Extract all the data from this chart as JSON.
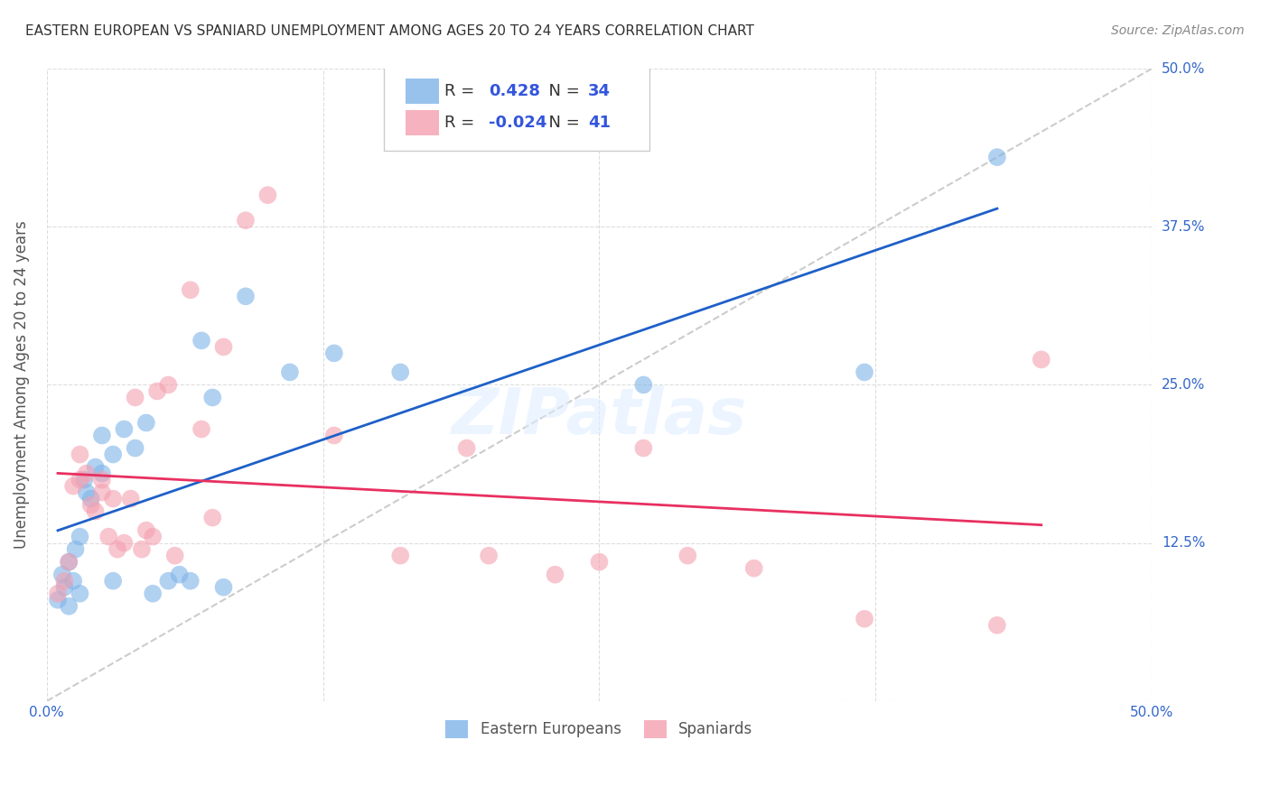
{
  "title": "EASTERN EUROPEAN VS SPANIARD UNEMPLOYMENT AMONG AGES 20 TO 24 YEARS CORRELATION CHART",
  "source": "Source: ZipAtlas.com",
  "ylabel": "Unemployment Among Ages 20 to 24 years",
  "xlim": [
    0.0,
    0.5
  ],
  "ylim": [
    0.0,
    0.5
  ],
  "xticks": [
    0.0,
    0.125,
    0.25,
    0.375,
    0.5
  ],
  "yticks": [
    0.0,
    0.125,
    0.25,
    0.375,
    0.5
  ],
  "xticklabels": [
    "0.0%",
    "",
    "",
    "",
    "50.0%"
  ],
  "yticklabels": [
    "",
    "12.5%",
    "25.0%",
    "37.5%",
    "50.0%"
  ],
  "blue_R": 0.428,
  "blue_N": 34,
  "pink_R": -0.024,
  "pink_N": 41,
  "legend_label1": "Eastern Europeans",
  "legend_label2": "Spaniards",
  "blue_color": "#7EB3E8",
  "pink_color": "#F4A0B0",
  "blue_line_color": "#1E60C8",
  "pink_line_color": "#E83060",
  "diagonal_color": "#CCCCCC",
  "watermark": "ZIPatlas",
  "blue_points_x": [
    0.005,
    0.007,
    0.008,
    0.01,
    0.01,
    0.012,
    0.013,
    0.015,
    0.015,
    0.017,
    0.018,
    0.02,
    0.022,
    0.025,
    0.025,
    0.03,
    0.03,
    0.035,
    0.04,
    0.045,
    0.048,
    0.055,
    0.06,
    0.065,
    0.07,
    0.075,
    0.08,
    0.09,
    0.11,
    0.13,
    0.16,
    0.27,
    0.37,
    0.43
  ],
  "blue_points_y": [
    0.08,
    0.1,
    0.09,
    0.075,
    0.11,
    0.095,
    0.12,
    0.13,
    0.085,
    0.175,
    0.165,
    0.16,
    0.185,
    0.21,
    0.18,
    0.195,
    0.095,
    0.215,
    0.2,
    0.22,
    0.085,
    0.095,
    0.1,
    0.095,
    0.285,
    0.24,
    0.09,
    0.32,
    0.26,
    0.275,
    0.26,
    0.25,
    0.26,
    0.43
  ],
  "pink_points_x": [
    0.005,
    0.008,
    0.01,
    0.012,
    0.015,
    0.015,
    0.018,
    0.02,
    0.022,
    0.025,
    0.025,
    0.028,
    0.03,
    0.032,
    0.035,
    0.038,
    0.04,
    0.043,
    0.045,
    0.048,
    0.05,
    0.055,
    0.058,
    0.065,
    0.07,
    0.075,
    0.08,
    0.09,
    0.1,
    0.13,
    0.16,
    0.19,
    0.2,
    0.23,
    0.25,
    0.27,
    0.29,
    0.32,
    0.37,
    0.43,
    0.45
  ],
  "pink_points_y": [
    0.085,
    0.095,
    0.11,
    0.17,
    0.175,
    0.195,
    0.18,
    0.155,
    0.15,
    0.165,
    0.175,
    0.13,
    0.16,
    0.12,
    0.125,
    0.16,
    0.24,
    0.12,
    0.135,
    0.13,
    0.245,
    0.25,
    0.115,
    0.325,
    0.215,
    0.145,
    0.28,
    0.38,
    0.4,
    0.21,
    0.115,
    0.2,
    0.115,
    0.1,
    0.11,
    0.2,
    0.115,
    0.105,
    0.065,
    0.06,
    0.27
  ]
}
